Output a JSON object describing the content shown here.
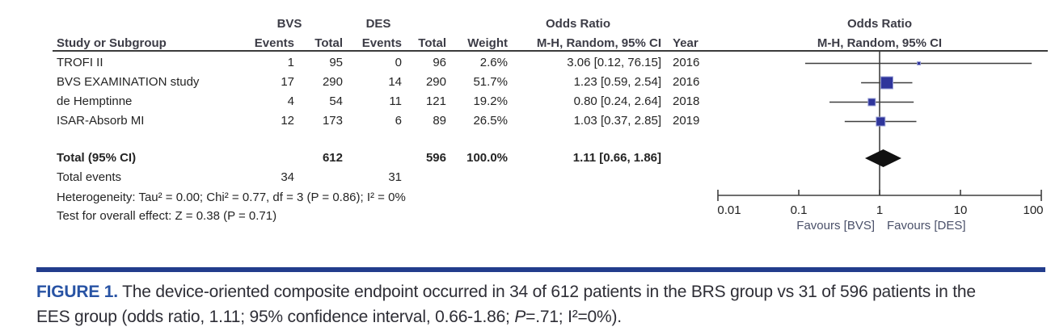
{
  "table": {
    "headers": {
      "group_bvs": "BVS",
      "group_des": "DES",
      "odds_ratio": "Odds Ratio",
      "study": "Study or Subgroup",
      "events": "Events",
      "total": "Total",
      "weight": "Weight",
      "mh_random": "M-H, Random, 95% CI",
      "year": "Year"
    },
    "rows": [
      {
        "study": "TROFI II",
        "bvs_events": "1",
        "bvs_total": "95",
        "des_events": "0",
        "des_total": "96",
        "weight": "2.6%",
        "or_ci": "3.06 [0.12, 76.15]",
        "year": "2016"
      },
      {
        "study": "BVS EXAMINATION study",
        "bvs_events": "17",
        "bvs_total": "290",
        "des_events": "14",
        "des_total": "290",
        "weight": "51.7%",
        "or_ci": "1.23 [0.59, 2.54]",
        "year": "2016"
      },
      {
        "study": "de Hemptinne",
        "bvs_events": "4",
        "bvs_total": "54",
        "des_events": "11",
        "des_total": "121",
        "weight": "19.2%",
        "or_ci": "0.80 [0.24, 2.64]",
        "year": "2018"
      },
      {
        "study": "ISAR-Absorb MI",
        "bvs_events": "12",
        "bvs_total": "173",
        "des_events": "6",
        "des_total": "89",
        "weight": "26.5%",
        "or_ci": "1.03 [0.37, 2.85]",
        "year": "2019"
      }
    ],
    "total_row": {
      "label": "Total (95% CI)",
      "bvs_total": "612",
      "des_total": "596",
      "weight": "100.0%",
      "or_ci": "1.11 [0.66, 1.86]"
    },
    "total_events": {
      "label": "Total events",
      "bvs": "34",
      "des": "31"
    },
    "heterogeneity": "Heterogeneity: Tau² = 0.00; Chi² = 0.77, df = 3 (P = 0.86); I² = 0%",
    "overall_effect": "Test for overall effect: Z = 0.38 (P = 0.71)"
  },
  "plot": {
    "tick_labels": [
      "0.01",
      "0.1",
      "1",
      "10",
      "100"
    ],
    "favours_left": "Favours [BVS]",
    "favours_right": "Favours [DES]"
  },
  "caption": {
    "label": "FIGURE 1.",
    "line1": "The device-oriented composite endpoint occurred in 34 of 612 patients in the BRS group vs 31 of 596 patients in the",
    "line2_before_p": "EES group (odds ratio, 1.11; 95% confidence interval, 0.66-1.86; ",
    "line2_p": "P",
    "line2_after_p": "=.71; I²=0%)."
  },
  "colors": {
    "marker_fill": "#2f359b",
    "marker_border": "#9aa0d6",
    "diamond": "#111111",
    "line": "#3f3f3f",
    "figure_label": "#2853a4",
    "rule": "#223c8c"
  },
  "chart_data": {
    "type": "forest_plot",
    "effect_measure": "Odds Ratio, M-H, Random, 95% CI",
    "x_scale": "log10",
    "x_ticks": [
      0.01,
      0.1,
      1,
      10,
      100
    ],
    "x_axis_labels": [
      "Favours [BVS]",
      "Favours [DES]"
    ],
    "studies": [
      {
        "name": "TROFI II",
        "bvs_events": 1,
        "bvs_total": 95,
        "des_events": 0,
        "des_total": 96,
        "weight_pct": 2.6,
        "or": 3.06,
        "ci_low": 0.12,
        "ci_high": 76.15,
        "year": 2016
      },
      {
        "name": "BVS EXAMINATION study",
        "bvs_events": 17,
        "bvs_total": 290,
        "des_events": 14,
        "des_total": 290,
        "weight_pct": 51.7,
        "or": 1.23,
        "ci_low": 0.59,
        "ci_high": 2.54,
        "year": 2016
      },
      {
        "name": "de Hemptinne",
        "bvs_events": 4,
        "bvs_total": 54,
        "des_events": 11,
        "des_total": 121,
        "weight_pct": 19.2,
        "or": 0.8,
        "ci_low": 0.24,
        "ci_high": 2.64,
        "year": 2018
      },
      {
        "name": "ISAR-Absorb MI",
        "bvs_events": 12,
        "bvs_total": 173,
        "des_events": 6,
        "des_total": 89,
        "weight_pct": 26.5,
        "or": 1.03,
        "ci_low": 0.37,
        "ci_high": 2.85,
        "year": 2019
      }
    ],
    "total": {
      "label": "Total (95% CI)",
      "or": 1.11,
      "ci_low": 0.66,
      "ci_high": 1.86,
      "bvs_events": 34,
      "bvs_total": 612,
      "des_events": 31,
      "des_total": 596,
      "weight_pct": 100.0
    },
    "heterogeneity": "Tau² = 0.00; Chi² = 0.77, df = 3 (P = 0.86); I² = 0%",
    "overall_effect": "Z = 0.38 (P = 0.71)"
  }
}
